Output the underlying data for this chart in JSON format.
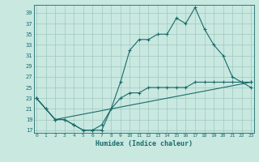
{
  "xlabel": "Humidex (Indice chaleur)",
  "bg_color": "#c8e8e0",
  "grid_color": "#a0c8c0",
  "line_color": "#1a6b6b",
  "x_ticks": [
    0,
    1,
    2,
    3,
    4,
    5,
    6,
    7,
    8,
    9,
    10,
    11,
    12,
    13,
    14,
    15,
    16,
    17,
    18,
    19,
    20,
    21,
    22,
    23
  ],
  "y_ticks": [
    17,
    19,
    21,
    23,
    25,
    27,
    29,
    31,
    33,
    35,
    37,
    39
  ],
  "xlim": [
    -0.3,
    23.3
  ],
  "ylim": [
    16.5,
    40.5
  ],
  "line1_x": [
    0,
    1,
    2,
    3,
    4,
    5,
    6,
    7,
    8,
    9,
    10,
    11,
    12,
    13,
    14,
    15,
    16,
    17,
    18,
    19,
    20,
    21,
    22,
    23
  ],
  "line1_y": [
    23,
    21,
    19,
    19,
    18,
    17,
    17,
    17,
    21,
    26,
    32,
    34,
    34,
    35,
    35,
    38,
    37,
    40,
    36,
    33,
    31,
    27,
    26,
    25
  ],
  "line2_x": [
    0,
    1,
    2,
    3,
    4,
    5,
    6,
    7,
    8,
    9,
    10,
    11,
    12,
    13,
    14,
    15,
    16,
    17,
    18,
    19,
    20,
    21,
    22,
    23
  ],
  "line2_y": [
    23,
    21,
    19,
    19,
    18,
    17,
    17,
    18,
    21,
    23,
    24,
    24,
    25,
    25,
    25,
    25,
    25,
    26,
    26,
    26,
    26,
    26,
    26,
    26
  ],
  "line3_x": [
    0,
    2,
    23
  ],
  "line3_y": [
    23,
    19,
    26
  ]
}
